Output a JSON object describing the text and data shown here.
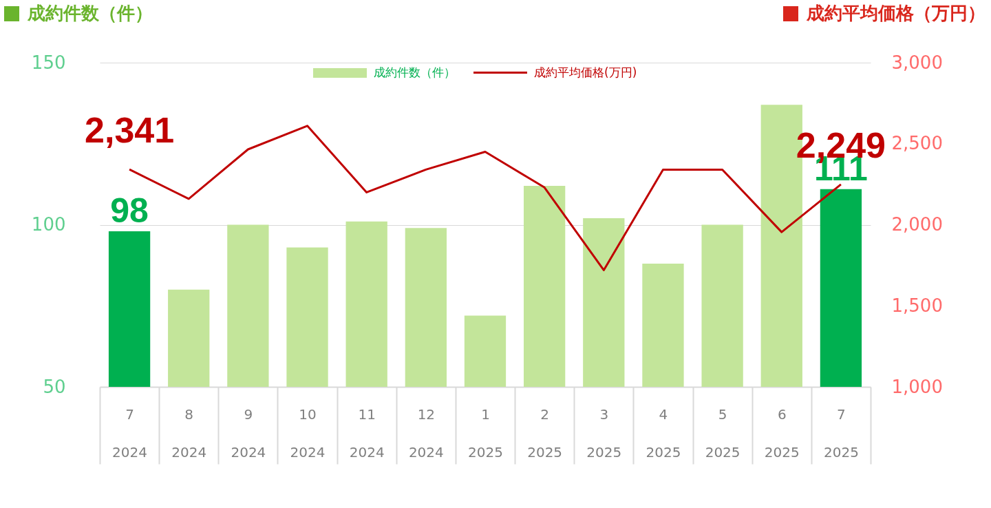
{
  "chart_data": {
    "type": "bar",
    "ylabel": "成約件数（件）",
    "y2label": "成約平均価格（万円）",
    "categories": [
      "7\n2024",
      "8\n2024",
      "9\n2024",
      "10\n2024",
      "11\n2024",
      "12\n2024",
      "1\n2025",
      "2\n2025",
      "3\n2025",
      "4\n2025",
      "5\n2025",
      "6\n2025",
      "7\n2025"
    ],
    "series": [
      {
        "name": "成約件数（件）",
        "color": "#c3e59a",
        "colors": [
          "#00b050",
          "#c3e59a",
          "#c3e59a",
          "#c3e59a",
          "#c3e59a",
          "#c3e59a",
          "#c3e59a",
          "#c3e59a",
          "#c3e59a",
          "#c3e59a",
          "#c3e59a",
          "#c3e59a",
          "#00b050"
        ],
        "values": [
          98,
          80,
          100,
          93,
          101,
          99,
          72,
          112,
          102,
          88,
          100,
          137,
          111
        ],
        "value_labels": [
          "98",
          null,
          null,
          null,
          null,
          null,
          null,
          null,
          null,
          null,
          null,
          null,
          "111"
        ]
      },
      {
        "name": "成約平均価格(万円)",
        "type": "line",
        "axis": "y2",
        "color": "#c00000",
        "values": [
          2341,
          2160,
          2465,
          2610,
          2200,
          2340,
          2450,
          2230,
          1720,
          2340,
          2340,
          1955,
          2249
        ],
        "value_labels": [
          "2,341",
          null,
          null,
          null,
          null,
          null,
          null,
          null,
          null,
          null,
          null,
          null,
          "2,249"
        ]
      }
    ],
    "ylim": [
      50,
      150
    ],
    "yticks": [
      50,
      100,
      150
    ],
    "y2lim": [
      1000,
      3000
    ],
    "y2ticks": [
      {
        "value": 1000,
        "label": "1,000"
      },
      {
        "value": 1500,
        "label": "1,500"
      },
      {
        "value": 2000,
        "label": "2,000"
      },
      {
        "value": 2500,
        "label": "2,500"
      },
      {
        "value": 3000,
        "label": "3,000"
      }
    ],
    "grid": "y",
    "legend": "top"
  }
}
